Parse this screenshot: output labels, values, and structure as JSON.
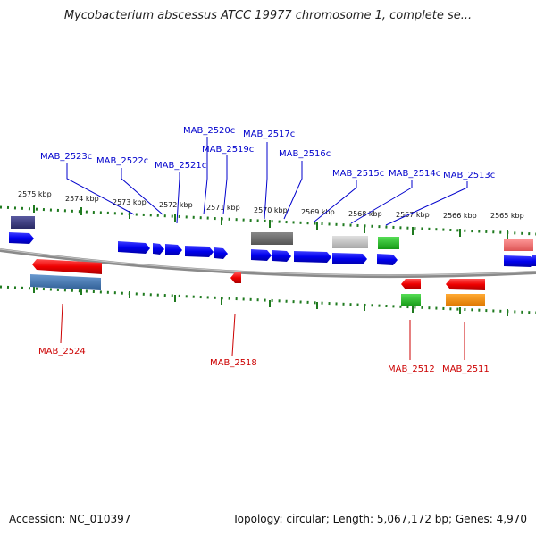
{
  "title": "Mycobacterium abscessus ATCC 19977 chromosome 1, complete se...",
  "footer": {
    "accession": "Accession: NC_010397",
    "summary": "Topology: circular; Length: 5,067,172 bp; Genes: 4,970"
  },
  "colors": {
    "forward_label": "#0000cc",
    "reverse_label": "#cc0000",
    "tick": "#1f7a1f",
    "backbone": "#8a8a8a"
  },
  "ticks": [
    {
      "label": "2575 kbp"
    },
    {
      "label": "2574 kbp"
    },
    {
      "label": "2573 kbp"
    },
    {
      "label": "2572 kbp"
    },
    {
      "label": "2571 kbp"
    },
    {
      "label": "2570 kbp"
    },
    {
      "label": "2569 kbp"
    },
    {
      "label": "2568 kbp"
    },
    {
      "label": "2567 kbp"
    },
    {
      "label": "2566 kbp"
    },
    {
      "label": "2565 kbp"
    }
  ],
  "forward_labels": [
    {
      "text": "MAB_2523c"
    },
    {
      "text": "MAB_2522c"
    },
    {
      "text": "MAB_2521c"
    },
    {
      "text": "MAB_2520c"
    },
    {
      "text": "MAB_2519c"
    },
    {
      "text": "MAB_2517c"
    },
    {
      "text": "MAB_2516c"
    },
    {
      "text": "MAB_2515c"
    },
    {
      "text": "MAB_2514c"
    },
    {
      "text": "MAB_2513c"
    }
  ],
  "reverse_labels": [
    {
      "text": "MAB_2524"
    },
    {
      "text": "MAB_2518"
    },
    {
      "text": "MAB_2512"
    },
    {
      "text": "MAB_2511"
    }
  ]
}
